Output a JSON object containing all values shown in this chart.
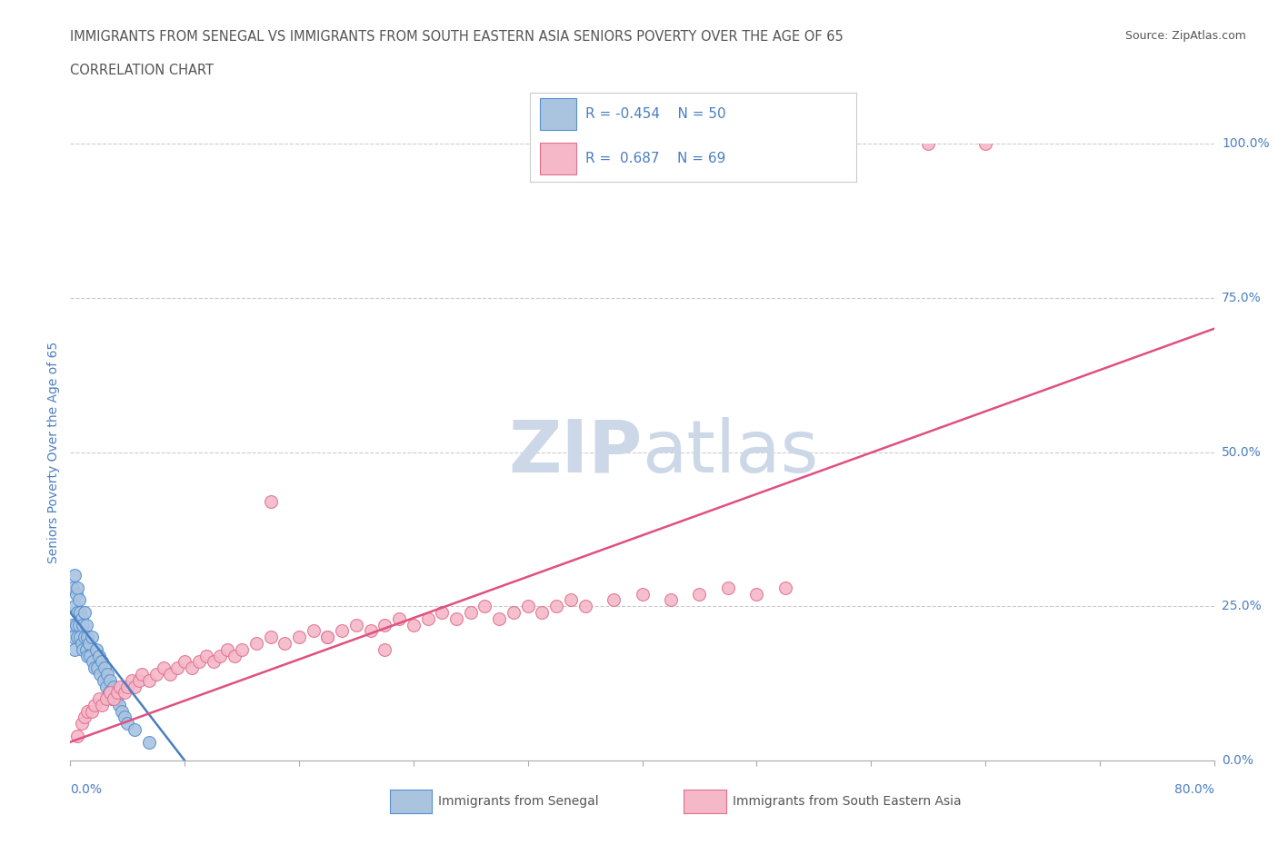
{
  "title_line1": "IMMIGRANTS FROM SENEGAL VS IMMIGRANTS FROM SOUTH EASTERN ASIA SENIORS POVERTY OVER THE AGE OF 65",
  "title_line2": "CORRELATION CHART",
  "source_text": "Source: ZipAtlas.com",
  "ylabel_label": "Seniors Poverty Over the Age of 65",
  "xmin": 0.0,
  "xmax": 0.8,
  "ymin": 0.0,
  "ymax": 1.0,
  "ytick_values": [
    0.0,
    0.25,
    0.5,
    0.75,
    1.0
  ],
  "ytick_labels": [
    "0.0%",
    "25.0%",
    "50.0%",
    "75.0%",
    "100.0%"
  ],
  "senegal_R": -0.454,
  "senegal_N": 50,
  "sea_R": 0.687,
  "sea_N": 69,
  "senegal_color": "#aac4e0",
  "senegal_edge_color": "#5590d0",
  "sea_color": "#f5b8c8",
  "sea_edge_color": "#e07090",
  "trend_blue": "#4a7fc1",
  "trend_pink": "#e05080",
  "watermark_color": "#ccd8e8",
  "grid_color": "#cccccc",
  "title_color": "#555555",
  "axis_label_color": "#4a7fc1",
  "legend_text_color": "#4a7fc1",
  "senegal_x": [
    0.001,
    0.002,
    0.002,
    0.003,
    0.003,
    0.003,
    0.004,
    0.004,
    0.005,
    0.005,
    0.005,
    0.006,
    0.006,
    0.007,
    0.007,
    0.008,
    0.008,
    0.009,
    0.009,
    0.01,
    0.01,
    0.011,
    0.011,
    0.012,
    0.012,
    0.013,
    0.014,
    0.015,
    0.016,
    0.017,
    0.018,
    0.019,
    0.02,
    0.021,
    0.022,
    0.023,
    0.024,
    0.025,
    0.026,
    0.027,
    0.028,
    0.029,
    0.03,
    0.032,
    0.034,
    0.036,
    0.038,
    0.04,
    0.045,
    0.055
  ],
  "senegal_y": [
    0.22,
    0.28,
    0.2,
    0.3,
    0.25,
    0.18,
    0.27,
    0.22,
    0.28,
    0.24,
    0.2,
    0.26,
    0.22,
    0.24,
    0.2,
    0.23,
    0.19,
    0.22,
    0.18,
    0.24,
    0.2,
    0.22,
    0.18,
    0.2,
    0.17,
    0.19,
    0.17,
    0.2,
    0.16,
    0.15,
    0.18,
    0.15,
    0.17,
    0.14,
    0.16,
    0.13,
    0.15,
    0.12,
    0.14,
    0.11,
    0.13,
    0.1,
    0.12,
    0.1,
    0.09,
    0.08,
    0.07,
    0.06,
    0.05,
    0.03
  ],
  "sea_x": [
    0.005,
    0.008,
    0.01,
    0.012,
    0.015,
    0.017,
    0.02,
    0.022,
    0.025,
    0.028,
    0.03,
    0.033,
    0.035,
    0.038,
    0.04,
    0.043,
    0.045,
    0.048,
    0.05,
    0.055,
    0.06,
    0.065,
    0.07,
    0.075,
    0.08,
    0.085,
    0.09,
    0.095,
    0.1,
    0.105,
    0.11,
    0.115,
    0.12,
    0.13,
    0.14,
    0.15,
    0.16,
    0.17,
    0.18,
    0.19,
    0.2,
    0.21,
    0.22,
    0.23,
    0.24,
    0.25,
    0.26,
    0.27,
    0.28,
    0.29,
    0.3,
    0.31,
    0.32,
    0.33,
    0.34,
    0.35,
    0.36,
    0.38,
    0.4,
    0.42,
    0.44,
    0.46,
    0.48,
    0.5,
    0.14,
    0.18,
    0.22,
    0.6,
    0.64
  ],
  "sea_y": [
    0.04,
    0.06,
    0.07,
    0.08,
    0.08,
    0.09,
    0.1,
    0.09,
    0.1,
    0.11,
    0.1,
    0.11,
    0.12,
    0.11,
    0.12,
    0.13,
    0.12,
    0.13,
    0.14,
    0.13,
    0.14,
    0.15,
    0.14,
    0.15,
    0.16,
    0.15,
    0.16,
    0.17,
    0.16,
    0.17,
    0.18,
    0.17,
    0.18,
    0.19,
    0.2,
    0.19,
    0.2,
    0.21,
    0.2,
    0.21,
    0.22,
    0.21,
    0.22,
    0.23,
    0.22,
    0.23,
    0.24,
    0.23,
    0.24,
    0.25,
    0.23,
    0.24,
    0.25,
    0.24,
    0.25,
    0.26,
    0.25,
    0.26,
    0.27,
    0.26,
    0.27,
    0.28,
    0.27,
    0.28,
    0.42,
    0.2,
    0.18,
    1.0,
    1.0
  ],
  "trend_senegal_x0": 0.0,
  "trend_senegal_y0": 0.24,
  "trend_senegal_x1": 0.08,
  "trend_senegal_y1": 0.0,
  "trend_sea_x0": 0.0,
  "trend_sea_y0": 0.03,
  "trend_sea_x1": 0.8,
  "trend_sea_y1": 0.7
}
